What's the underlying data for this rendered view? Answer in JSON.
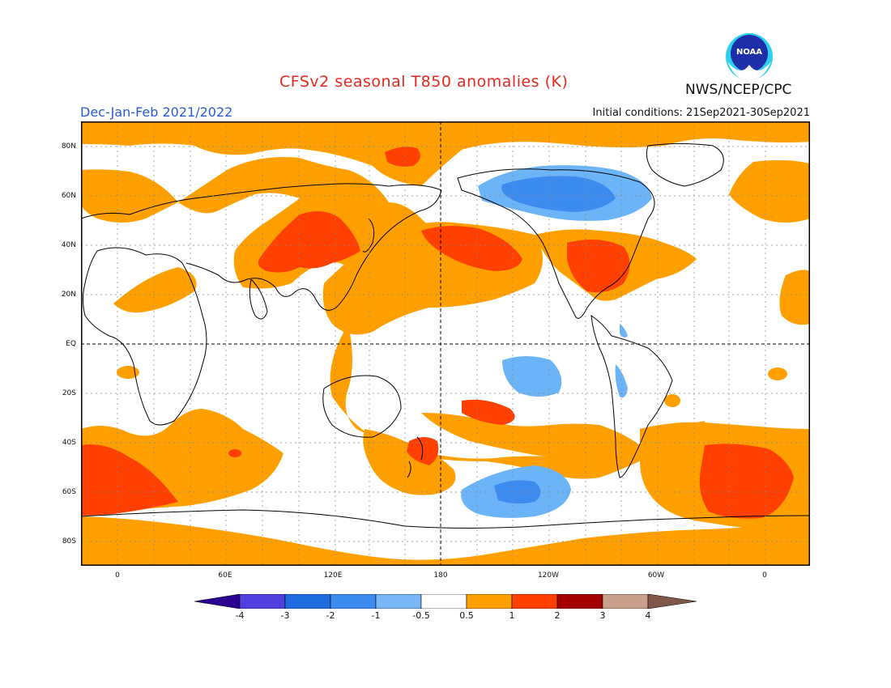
{
  "header": {
    "title": "CFSv2 seasonal T850 anomalies (K)",
    "season": "Dec-Jan-Feb 2021/2022",
    "initial_conditions": "Initial conditions: 21Sep2021-30Sep2021",
    "agency": "NWS/NCEP/CPC",
    "logo_text": "NOAA"
  },
  "map": {
    "variable": "T850 anomaly",
    "units": "K",
    "lat_labels": [
      "80N",
      "60N",
      "40N",
      "20N",
      "EQ",
      "20S",
      "40S",
      "60S",
      "80S"
    ],
    "lon_labels": [
      "0",
      "60E",
      "120E",
      "180",
      "120W",
      "60W",
      "0"
    ],
    "colors": {
      "warm_0_5_1": "#ffa000",
      "warm_1_2": "#ff4000",
      "cool_0_5_1": "#6cb4f8",
      "cool_1_2": "#3c8cf0",
      "coast": "#000000"
    }
  },
  "colorbar": {
    "labels": [
      "-4",
      "-3",
      "-2",
      "-1",
      "-0.5",
      "0.5",
      "1",
      "2",
      "3",
      "4"
    ],
    "colors": [
      "#2a0090",
      "#5040e0",
      "#1f6be0",
      "#3c8cf0",
      "#78b8f8",
      "#ffffff",
      "#ffa000",
      "#ff4000",
      "#a50000",
      "#c8a08c",
      "#80584a"
    ]
  }
}
